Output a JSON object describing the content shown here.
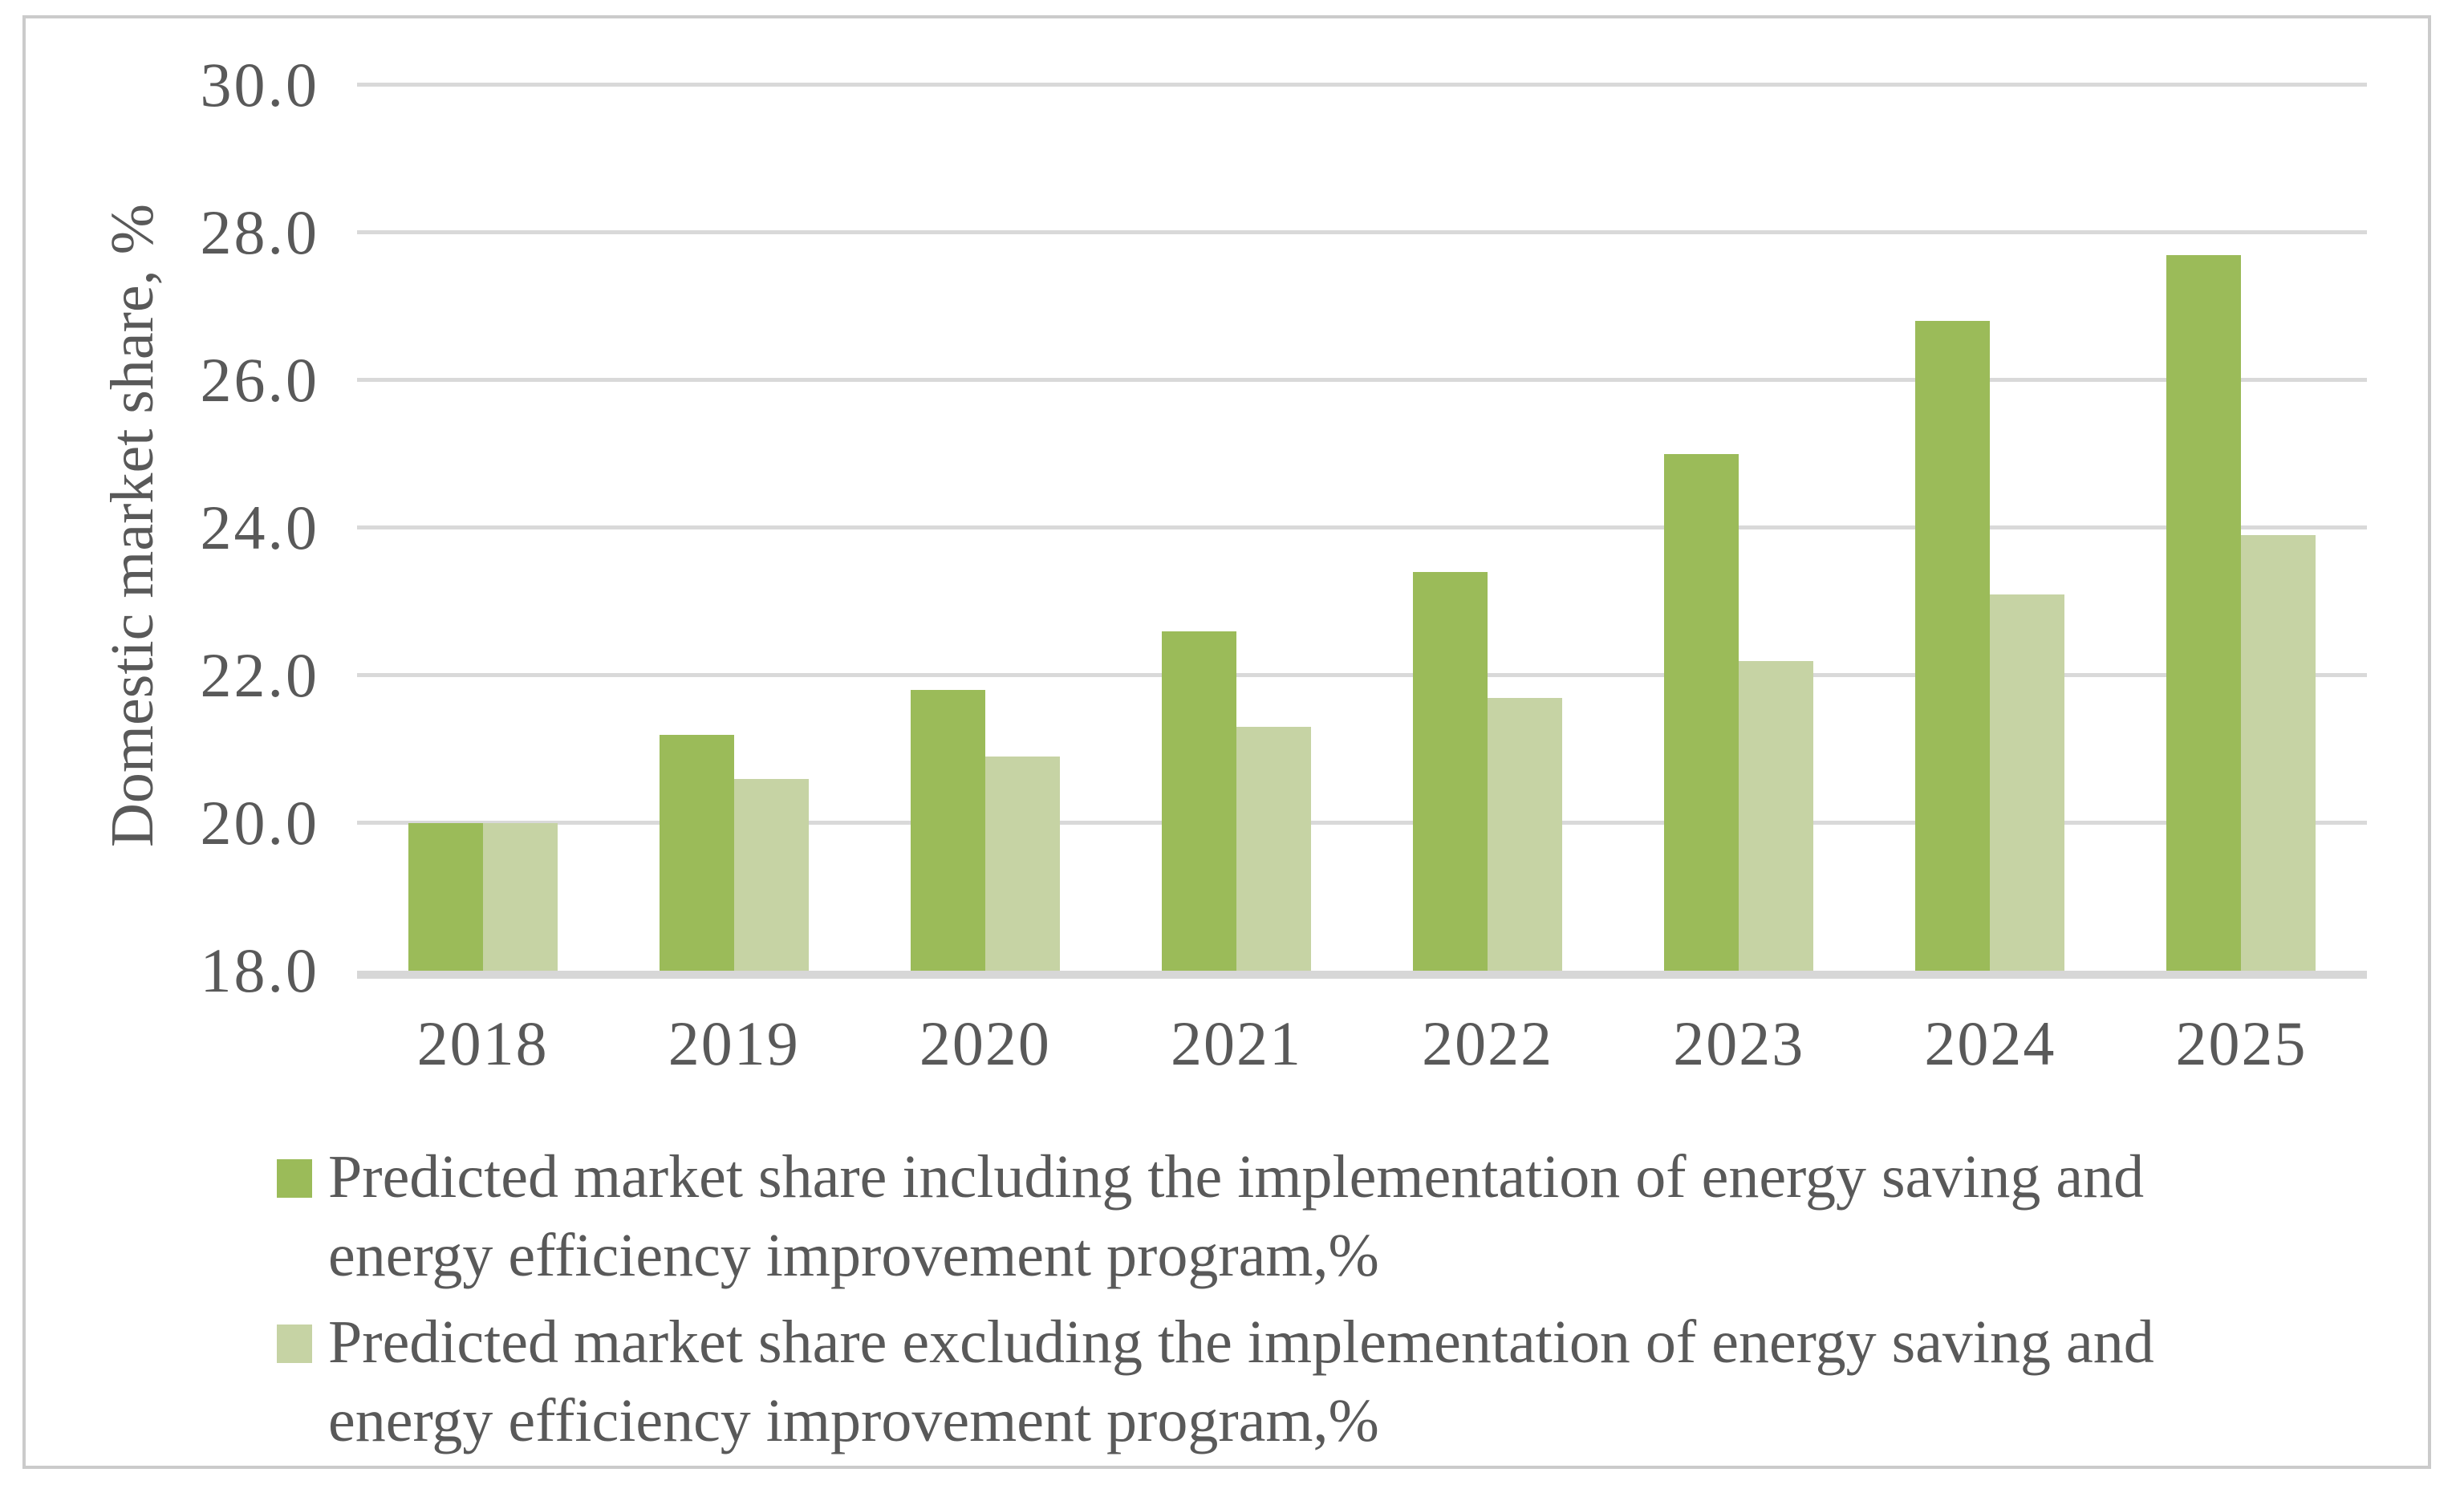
{
  "colors": {
    "background": "#FFFFFF",
    "frame_border": "#CBCBCB",
    "gridline": "#D9D9D9",
    "axis_line": "#D7D7D7",
    "text": "#595959",
    "series_including": "#9BBB59",
    "series_excluding": "#C6D3A4"
  },
  "chart_data": {
    "type": "bar",
    "title": "",
    "xlabel": "",
    "ylabel": "Domestic market share, %",
    "categories": [
      "2018",
      "2019",
      "2020",
      "2021",
      "2022",
      "2023",
      "2024",
      "2025"
    ],
    "series": [
      {
        "key": "including",
        "name": "Predicted market share including the implementation of energy saving and energy efficiency improvement program,%",
        "color": "#9BBB59",
        "values": [
          20.0,
          21.2,
          21.8,
          22.6,
          23.4,
          25.0,
          26.8,
          27.7
        ]
      },
      {
        "key": "excluding",
        "name": "Predicted market share excluding the implementation of energy saving and energy efficiency improvement program,%",
        "color": "#C6D3A4",
        "values": [
          20.0,
          20.6,
          20.9,
          21.3,
          21.7,
          22.2,
          23.1,
          23.9
        ]
      }
    ],
    "ylim": [
      18.0,
      30.0
    ],
    "ytick_step": 2.0,
    "yticks": [
      "18.0",
      "20.0",
      "22.0",
      "24.0",
      "26.0",
      "28.0",
      "30.0"
    ],
    "grid": true,
    "legend_position": "bottom"
  },
  "legend": {
    "entries": [
      {
        "swatch_color": "#9BBB59",
        "lines": [
          "Predicted market share including the implementation of energy saving and",
          "energy efficiency improvement program,%"
        ]
      },
      {
        "swatch_color": "#C6D3A4",
        "lines": [
          "Predicted market share excluding the implementation of energy saving and",
          "energy efficiency improvement program,%"
        ]
      }
    ]
  }
}
